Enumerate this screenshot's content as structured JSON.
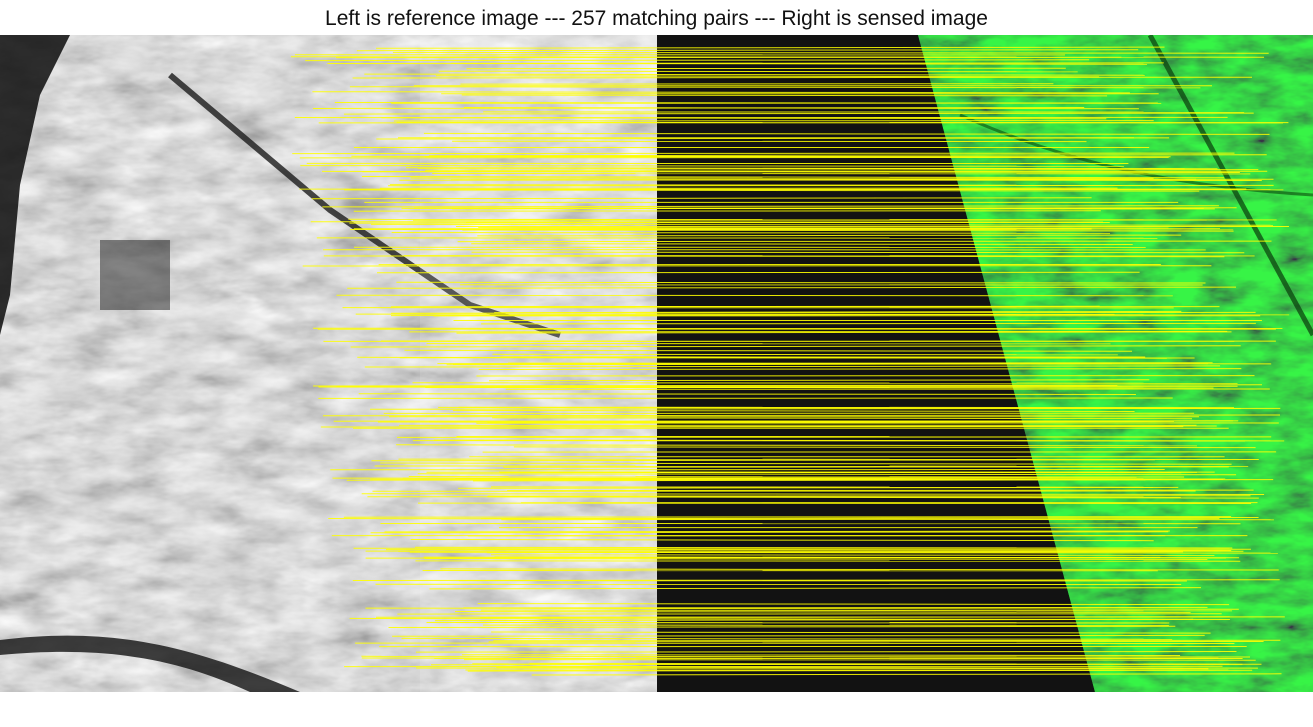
{
  "figure": {
    "title": "Left is reference image --- 257 matching pairs --- Right is sensed image"
  },
  "panels": {
    "left": {
      "kind": "reference-image",
      "tone": "grayscale"
    },
    "right": {
      "kind": "sensed-image",
      "tone": "green",
      "background": "#141414"
    }
  },
  "colors": {
    "match_line": "#ffff00",
    "sensed_fill": "#1fd62b",
    "sensed_dark": "#0a5a10",
    "void": "#121212"
  },
  "matches": {
    "count": 257
  }
}
